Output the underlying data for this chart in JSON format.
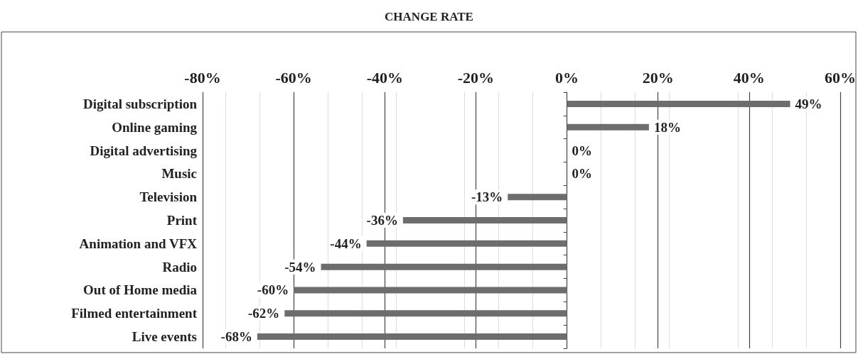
{
  "chart_data": {
    "type": "bar",
    "title": "CHANGE RATE",
    "orientation": "horizontal",
    "categories": [
      "Digital subscription",
      "Online gaming",
      "Digital advertising",
      "Music",
      "Television",
      "Print",
      "Animation and VFX",
      "Radio",
      "Out of Home media",
      "Filmed entertainment",
      "Live events"
    ],
    "values": [
      49,
      18,
      0,
      0,
      -13,
      -36,
      -44,
      -54,
      -60,
      -62,
      -68
    ],
    "value_labels": [
      "49%",
      "18%",
      "0%",
      "0%",
      "-13%",
      "-36%",
      "-44%",
      "-54%",
      "-60%",
      "-62%",
      "-68%"
    ],
    "color": "#6d6d6d",
    "xlim": [
      -80,
      60
    ],
    "xticks": [
      {
        "value": -80,
        "label": "-80%"
      },
      {
        "value": -60,
        "label": "-60%"
      },
      {
        "value": -40,
        "label": "-40%"
      },
      {
        "value": -20,
        "label": "-20%"
      },
      {
        "value": 0,
        "label": "0%"
      },
      {
        "value": 20,
        "label": "20%"
      },
      {
        "value": 40,
        "label": "40%"
      },
      {
        "value": 60,
        "label": "60%"
      }
    ],
    "grid": "x"
  }
}
